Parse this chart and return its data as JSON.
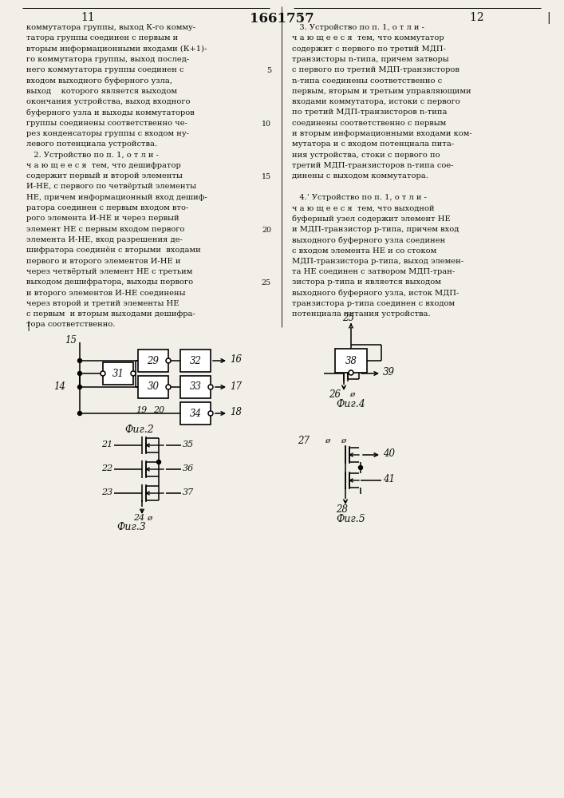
{
  "title": "1661757",
  "page_left": "11",
  "page_right": "12 ",
  "bg_color": "#f2efe8",
  "text_color": "#111111",
  "left_lines": [
    "коммутатора группы, выход К-го комму-",
    "татора группы соединен с первым и",
    "вторым информационными входами (К+1)-",
    "го коммутатора группы, выход послед-",
    "него коммутатора группы соединен с",
    "входом выходного буферного узла,",
    "выход    которого является выходом",
    "окончания устройства, выход входного",
    "буферного узла и выходы коммутаторов",
    "группы соединены соответственно че-",
    "рез конденсаторы группы с входом ну-",
    "левого потенциала устройства.",
    "   2. Устройство по п. 1, о т л и -",
    "ч а ю щ е е с я  тем, что дешифратор",
    "содержит первый и второй элементы",
    "И-НЕ, с первого по четвёртый элементы",
    "НЕ, причем информационный вход дешиф-",
    "ратора соединен с первым входом вто-",
    "рого элемента И-НЕ и через первый",
    "элемент НЕ с первым входом первого",
    "элемента И-НЕ, вход разрешения де-",
    "шифратора соединён с вторыми  входами",
    "первого и второго элементов И-НЕ и",
    "через четвёртый элемент НЕ с третьим",
    "выходом дешифратора, выходы первого",
    "и второго элементов И-НЕ соединены",
    "через второй и третий элементы НЕ",
    "с первым  и вторым выходами дешифра-",
    "тора соответственно.",
    " "
  ],
  "right_lines": [
    "   3. Устройство по п. 1, о т л и -",
    "ч а ю щ е е с я  тем, что коммутатор",
    "содержит с первого по третий МДП-",
    "транзисторы n-типа, причем затворы",
    "с первого по третий МДП-транзисторов",
    "n-типа соединены соответственно с",
    "первым, вторым и третьим управляющими",
    "входами коммутатора, истоки с первого",
    "по третий МДП-транзисторов n-типа",
    "соединены соответственно с первым",
    "и вторым информационными входами ком-",
    "мутатора и с входом потенциала пита-",
    "ния устройства, стоки с первого по",
    "третий МДП-транзисторов n-типа сое-",
    "динены с выходом коммутатора.",
    "",
    "   4.’ Устройство по п. 1, о т л и -",
    "ч а ю щ е е с я  тем, что выходной",
    "буферный узел содержит элемент НЕ",
    "и МДП-транзистор p-типа, причем вход",
    "выходного буферного узла соединен",
    "с входом элемента НЕ и со стоком",
    "МДП-транзистора p-типа, выход элемен-",
    "та НЕ соединен с затвором МДП-тран-",
    "зистора p-типа и является выходом",
    "выходного буферного узла, исток МДП-",
    "транзистора p-типа соединен с входом",
    "потенциала питания устройства."
  ]
}
